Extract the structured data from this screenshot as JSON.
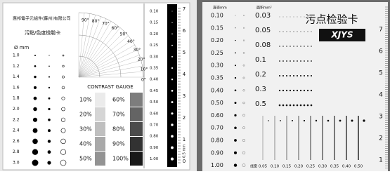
{
  "left_card": {
    "company": "惠邦電子元組件(蘇州)有限公司",
    "title": "污點/色度檢驗卡",
    "diameter_header": "Ø mm",
    "diameters": [
      "1.0",
      "1.2",
      "1.4",
      "1.6",
      "1.8",
      "2.0",
      "2.2",
      "2.4",
      "2.6",
      "2.8",
      "3.0"
    ],
    "angles": [
      "90°",
      "80°",
      "70°",
      "60°",
      "50°",
      "40°",
      "30°",
      "20°",
      "10°",
      "0°"
    ],
    "contrast_title": "CONTRAST GAUGE",
    "contrast_left": [
      "10%",
      "20%",
      "30%",
      "40%",
      "50%"
    ],
    "contrast_right": [
      "60%",
      "70%",
      "80%",
      "90%",
      "100%"
    ],
    "strip_values": [
      "0.10",
      "0.15",
      "0.20",
      "0.25",
      "0.30",
      "0.35",
      "0.40",
      "0.45",
      "0.50",
      "0.60",
      "0.70",
      "0.80",
      "0.90",
      "1.00"
    ],
    "ruler": [
      "0",
      "1",
      "2",
      "3",
      "4",
      "5",
      "6",
      "7"
    ],
    "ruler_unit": "0.5 mm"
  },
  "right_card": {
    "diameter_header": "直径mm",
    "area_header": "面积mm²",
    "title": "污点检验卡",
    "brand": "XJYS",
    "diameters": [
      "0.10",
      "0.15",
      "0.20",
      "0.25",
      "0.30",
      "0.35",
      "0.40",
      "0.50",
      "0.60",
      "0.70",
      "0.80",
      "0.90",
      "1.00"
    ],
    "areas": [
      "0.03",
      "0.05",
      "0.08",
      "0.1",
      "0.2",
      "0.3",
      "0.5"
    ],
    "line_width_header": "线宽",
    "line_widths": [
      "0.05",
      "0.10",
      "0.15",
      "0.20",
      "0.25",
      "0.30",
      "0.35",
      "0.40",
      "0.50"
    ],
    "ruler": [
      "1",
      "2",
      "3",
      "4",
      "5",
      "6",
      "7"
    ]
  }
}
